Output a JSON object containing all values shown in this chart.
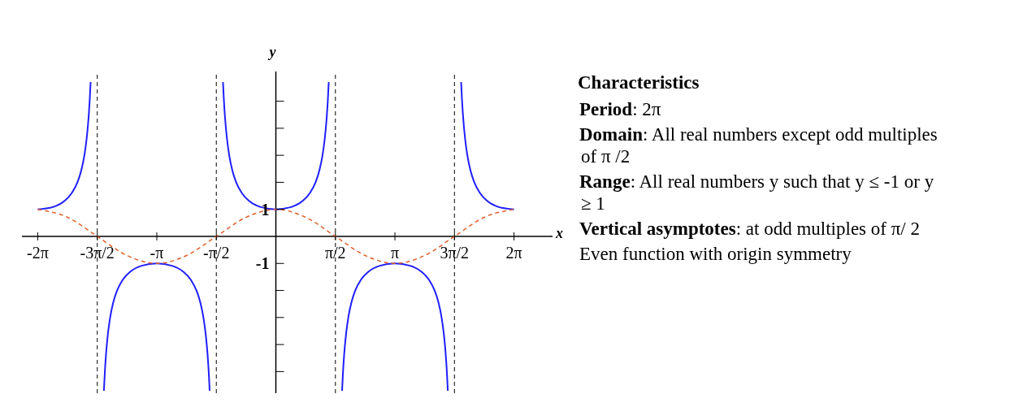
{
  "chart_data": {
    "type": "line",
    "xlabel": "x",
    "ylabel": "y",
    "xlim": [
      -6.7,
      7.3
    ],
    "ylim": [
      -5.8,
      6.1
    ],
    "xticks": [
      {
        "value": -6.283,
        "label": "-2π"
      },
      {
        "value": -4.712,
        "label": "-3π/2"
      },
      {
        "value": -3.142,
        "label": "-π"
      },
      {
        "value": -1.571,
        "label": "-π/2"
      },
      {
        "value": 1.571,
        "label": "π/2"
      },
      {
        "value": 3.142,
        "label": "π"
      },
      {
        "value": 4.712,
        "label": "3π/2"
      },
      {
        "value": 6.283,
        "label": "2π"
      }
    ],
    "yticks": [
      {
        "value": -5,
        "label": null
      },
      {
        "value": -4,
        "label": null
      },
      {
        "value": -3,
        "label": null
      },
      {
        "value": -2,
        "label": null
      },
      {
        "value": -1,
        "label": "-1"
      },
      {
        "value": 1,
        "label": "1"
      },
      {
        "value": 2,
        "label": null
      },
      {
        "value": 3,
        "label": null
      },
      {
        "value": 4,
        "label": null
      },
      {
        "value": 5,
        "label": null
      }
    ],
    "marker": "none",
    "grid": false,
    "legend": false,
    "series": [
      {
        "type": "line",
        "color": "#1f1fff",
        "line_style": "solid",
        "x": [
          -6.283,
          -5.883,
          -5.583,
          -5.383,
          -5.233,
          -5.133,
          -5.053,
          -4.993,
          -4.943,
          -4.911,
          -4.888,
          -4.712,
          -4.537,
          -4.514,
          -4.482,
          -4.432,
          -4.372,
          -4.292,
          -4.192,
          -4.042,
          -3.842,
          -3.542,
          -3.142,
          -2.742,
          -2.442,
          -2.242,
          -2.092,
          -1.992,
          -1.912,
          -1.852,
          -1.802,
          -1.77,
          -1.747,
          -1.571,
          -1.395,
          -1.372,
          -1.34,
          -1.29,
          -1.23,
          -1.15,
          -1.05,
          -0.9,
          -0.7,
          -0.4,
          0,
          0.4,
          0.7,
          0.9,
          1.05,
          1.15,
          1.23,
          1.29,
          1.34,
          1.372,
          1.395,
          1.571,
          1.747,
          1.77,
          1.802,
          1.852,
          1.912,
          1.992,
          2.092,
          2.242,
          2.442,
          2.742,
          3.142,
          3.542,
          3.842,
          4.042,
          4.192,
          4.292,
          4.372,
          4.432,
          4.482,
          4.514,
          4.537,
          4.712,
          4.888,
          4.911,
          4.943,
          4.993,
          5.053,
          5.133,
          5.233,
          5.383,
          5.583,
          5.883,
          6.283
        ],
        "values": [
          1,
          1.086,
          1.307,
          1.609,
          2.01,
          2.448,
          2.992,
          3.613,
          4.371,
          5.056,
          5.711,
          null,
          -5.711,
          -5.056,
          -4.371,
          -3.613,
          -2.992,
          -2.448,
          -2.01,
          -1.609,
          -1.307,
          -1.086,
          -1,
          -1.086,
          -1.307,
          -1.609,
          -2.01,
          -2.448,
          -2.992,
          -3.613,
          -4.371,
          -5.056,
          -5.711,
          null,
          5.711,
          5.056,
          4.371,
          3.613,
          2.992,
          2.448,
          2.01,
          1.609,
          1.307,
          1.086,
          1,
          1.086,
          1.307,
          1.609,
          2.01,
          2.448,
          2.992,
          3.613,
          4.371,
          5.056,
          5.711,
          null,
          -5.711,
          -5.056,
          -4.371,
          -3.613,
          -2.992,
          -2.448,
          -2.01,
          -1.609,
          -1.307,
          -1.086,
          -1,
          -1.086,
          -1.307,
          -1.609,
          -2.01,
          -2.448,
          -2.992,
          -3.613,
          -4.371,
          -5.056,
          -5.711,
          null,
          5.711,
          5.056,
          4.371,
          3.613,
          2.992,
          2.448,
          2.01,
          1.609,
          1.307,
          1.086,
          1
        ]
      },
      {
        "type": "line",
        "color": "#e0602a",
        "line_style": "dashed",
        "x": [
          -6.283,
          -5.498,
          -4.712,
          -3.927,
          -3.142,
          -2.356,
          -1.571,
          -0.785,
          0,
          0.785,
          1.571,
          2.356,
          3.142,
          3.927,
          4.712,
          5.498,
          6.283
        ],
        "values": [
          1,
          0.707,
          0,
          -0.707,
          -1,
          -0.707,
          0,
          0.707,
          1,
          0.707,
          0,
          -0.707,
          -1,
          -0.707,
          0,
          0.707,
          1
        ]
      }
    ],
    "ref_lines": [
      {
        "axis": "x",
        "value": -4.712,
        "color": "#000000",
        "line_style": "dashed"
      },
      {
        "axis": "x",
        "value": -1.571,
        "color": "#000000",
        "line_style": "dashed"
      },
      {
        "axis": "x",
        "value": 1.571,
        "color": "#000000",
        "line_style": "dashed"
      },
      {
        "axis": "x",
        "value": 4.712,
        "color": "#000000",
        "line_style": "dashed"
      }
    ],
    "annotations": [
      "Characteristics",
      "Period: 2π",
      "Domain: All real numbers except odd multiples of π /2",
      "Range: All real numbers y such that y ≤ -1 or y ≥ 1",
      "Vertical asymptotes: at odd multiples of π/ 2",
      "Even function with origin symmetry"
    ]
  }
}
